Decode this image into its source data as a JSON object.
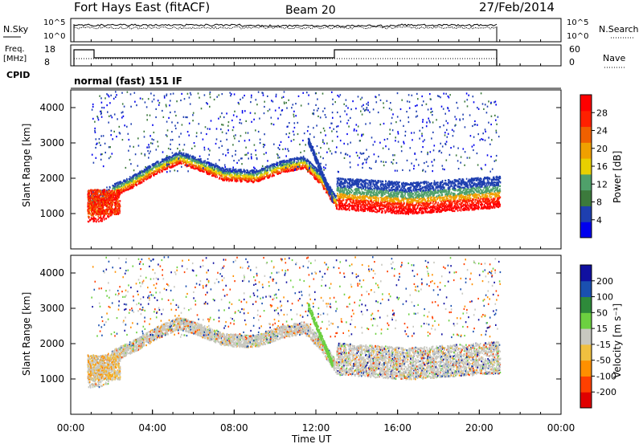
{
  "header": {
    "station": "Fort Hays East (fitACF)",
    "beam": "Beam 20",
    "date": "27/Feb/2014"
  },
  "noise_panel": {
    "left_label": "N.Sky",
    "right_label": "N.Search",
    "left_ticks": [
      "10^5",
      "10^0"
    ],
    "right_ticks": [
      "10^5",
      "10^0"
    ]
  },
  "freq_panel": {
    "left_label_1": "Freq.",
    "left_label_2": "[MHz]",
    "left_ticks": [
      "18",
      "8"
    ],
    "right_label": "Nave",
    "right_ticks": [
      "60",
      "0"
    ]
  },
  "cpid": {
    "label": "CPID",
    "program": "normal (fast) 151 IF"
  },
  "colors": {
    "power": [
      "#0000ee",
      "#1e3fb0",
      "#3c7a3c",
      "#4fa06a",
      "#e8d000",
      "#f0a000",
      "#f06000",
      "#ff2000",
      "#ff0000"
    ],
    "velocity": [
      "#e00000",
      "#ff4000",
      "#ff9000",
      "#f0c040",
      "#c8c8c0",
      "#6cd040",
      "#2e8a3a",
      "#1a50b0",
      "#1010a0"
    ]
  },
  "chart_data": [
    {
      "type": "line",
      "title": "",
      "series": [
        {
          "x": [
            "00:45",
            "01:00",
            "13:00",
            "21:00"
          ],
          "values": [
            18,
            18,
            18,
            18
          ]
        }
      ]
    },
    {
      "type": "heatmap",
      "title": "",
      "ylabel": "Slant Range [km]",
      "ylim": [
        0,
        4500
      ],
      "yticks": [
        "1000",
        "2000",
        "3000",
        "4000"
      ],
      "colorbar_label": "Power [dB]",
      "colorbar_ticks": [
        "28",
        "24",
        "20",
        "16",
        "12",
        "8",
        "4"
      ]
    },
    {
      "type": "heatmap",
      "title": "",
      "ylabel": "Slant Range [km]",
      "ylim": [
        0,
        4500
      ],
      "yticks": [
        "1000",
        "2000",
        "3000",
        "4000"
      ],
      "colorbar_label": "Velocity [m s⁻¹]",
      "colorbar_ticks": [
        "200",
        "100",
        "50",
        "15",
        "-15",
        "-50",
        "-100",
        "-200"
      ],
      "xlabel": "Time UT",
      "xticks": [
        "00:00",
        "04:00",
        "08:00",
        "12:00",
        "16:00",
        "20:00",
        "00:00"
      ],
      "xlim_hours": [
        0,
        24
      ]
    }
  ]
}
